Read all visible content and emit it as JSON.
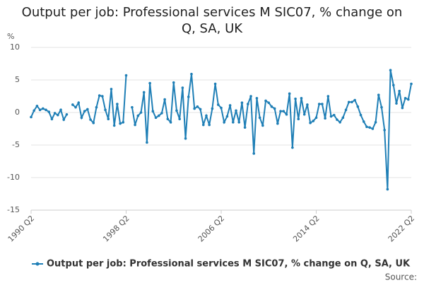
{
  "chart_data": {
    "type": "line",
    "title": "Output per job: Professional services M SIC07, % change on Q, SA, UK",
    "y_label": "%",
    "source": "Source:",
    "categories": [
      "1990 Q2",
      null,
      null,
      null,
      null,
      null,
      null,
      null,
      null,
      null,
      null,
      null,
      null,
      null,
      null,
      null,
      null,
      null,
      null,
      null,
      null,
      null,
      null,
      null,
      null,
      null,
      null,
      null,
      null,
      null,
      null,
      null,
      "1998 Q2",
      null,
      null,
      null,
      null,
      null,
      null,
      null,
      null,
      null,
      null,
      null,
      null,
      null,
      null,
      null,
      null,
      null,
      null,
      null,
      null,
      null,
      null,
      null,
      null,
      null,
      null,
      null,
      null,
      null,
      null,
      null,
      "2006 Q2",
      null,
      null,
      null,
      null,
      null,
      null,
      null,
      null,
      null,
      null,
      null,
      null,
      null,
      null,
      null,
      null,
      null,
      null,
      null,
      null,
      null,
      null,
      null,
      null,
      null,
      null,
      null,
      null,
      null,
      null,
      null,
      "2014 Q2",
      null,
      null,
      null,
      null,
      null,
      null,
      null,
      null,
      null,
      null,
      null,
      null,
      null,
      null,
      null,
      null,
      null,
      null,
      null,
      null,
      null,
      null,
      null,
      null,
      null,
      null,
      null,
      null,
      null,
      null,
      null,
      "2022 Q2"
    ],
    "series": [
      {
        "name": "Output per job: Professional services M SIC07, % change on Q, SA, UK",
        "color": "#1f7fb6",
        "values": [
          -0.7,
          0.3,
          1.0,
          0.4,
          0.6,
          0.4,
          0.1,
          -1.0,
          -0.1,
          -0.4,
          0.4,
          -1.1,
          -0.3,
          null,
          1.2,
          0.8,
          1.5,
          -0.8,
          0.2,
          0.5,
          -1.1,
          -1.6,
          0.8,
          2.6,
          2.5,
          0.4,
          -1.0,
          3.6,
          -2.0,
          1.3,
          -1.7,
          -1.5,
          5.7,
          null,
          0.8,
          -1.9,
          -0.5,
          0.0,
          3.1,
          -4.6,
          4.5,
          0.2,
          -0.8,
          -0.5,
          -0.1,
          2.0,
          -1.0,
          -1.5,
          4.6,
          0.3,
          -1.0,
          3.8,
          -4.0,
          2.4,
          5.9,
          0.6,
          0.9,
          0.5,
          -1.9,
          -0.5,
          -1.9,
          0.6,
          4.4,
          1.2,
          0.7,
          -1.5,
          -0.6,
          1.1,
          -1.5,
          0.3,
          -1.5,
          1.5,
          -2.3,
          1.3,
          2.5,
          -6.3,
          2.2,
          -0.8,
          -2.0,
          1.8,
          1.5,
          0.9,
          0.6,
          -1.7,
          0.2,
          0.2,
          -0.3,
          2.9,
          -5.4,
          2.1,
          -1.0,
          2.2,
          -0.3,
          1.2,
          -1.6,
          -1.3,
          -0.8,
          1.3,
          1.3,
          -0.9,
          2.5,
          -0.6,
          -0.4,
          -1.1,
          -1.5,
          -0.8,
          0.4,
          1.6,
          1.6,
          1.9,
          0.9,
          -0.4,
          -1.4,
          -2.2,
          -2.3,
          -2.5,
          -1.5,
          2.7,
          0.8,
          -2.7,
          -11.8,
          6.5,
          4.2,
          1.4,
          3.3,
          0.7,
          2.2,
          2.0,
          4.4
        ]
      }
    ],
    "ylim": [
      -15,
      10
    ],
    "yticks": [
      -15,
      -10,
      -5,
      0,
      5,
      10
    ],
    "grid": true
  }
}
